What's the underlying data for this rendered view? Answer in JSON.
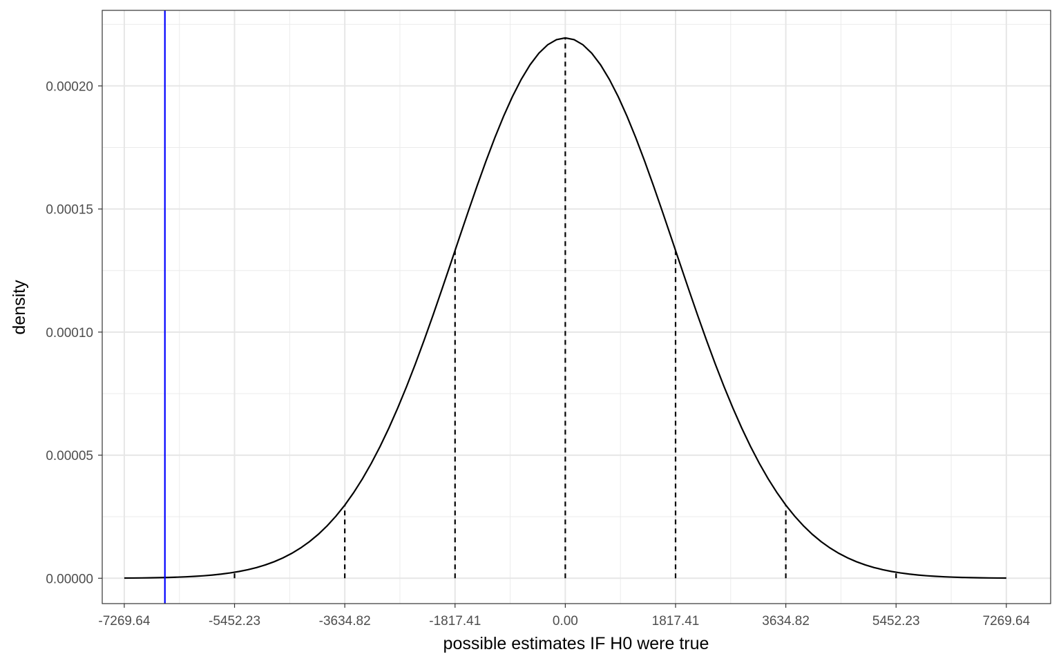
{
  "chart_data": {
    "type": "line",
    "title": "",
    "xlabel": "possible estimates IF H0 were true",
    "ylabel": "density",
    "xlim": [
      -7633,
      8000
    ],
    "ylim": [
      -1.03e-05,
      0.0002307
    ],
    "grid": true,
    "x_ticks": [
      {
        "value": -7269.64,
        "label": "-7269.64"
      },
      {
        "value": -5452.23,
        "label": "-5452.23"
      },
      {
        "value": -3634.82,
        "label": "-3634.82"
      },
      {
        "value": -1817.41,
        "label": "-1817.41"
      },
      {
        "value": 0,
        "label": "0.00"
      },
      {
        "value": 1817.41,
        "label": "1817.41"
      },
      {
        "value": 3634.82,
        "label": "3634.82"
      },
      {
        "value": 5452.23,
        "label": "5452.23"
      },
      {
        "value": 7269.64,
        "label": "7269.64"
      }
    ],
    "y_ticks": [
      {
        "value": 0,
        "label": "0.00000"
      },
      {
        "value": 5e-05,
        "label": "0.00005"
      },
      {
        "value": 0.0001,
        "label": "0.00010"
      },
      {
        "value": 0.00015,
        "label": "0.00015"
      },
      {
        "value": 0.0002,
        "label": "0.00020"
      }
    ],
    "series": [
      {
        "kind": "normal_density",
        "mean": 0,
        "sd": 1817.41,
        "x_range": [
          -7269.64,
          7269.64
        ],
        "color": "#000000"
      }
    ],
    "reference_segments": {
      "x": [
        -5452.23,
        -3634.82,
        -1817.41,
        0,
        1817.41,
        3634.82,
        5452.23
      ],
      "style": "dashed",
      "color": "#000000"
    },
    "vline": {
      "x": -6600,
      "color": "#0000ff"
    }
  }
}
